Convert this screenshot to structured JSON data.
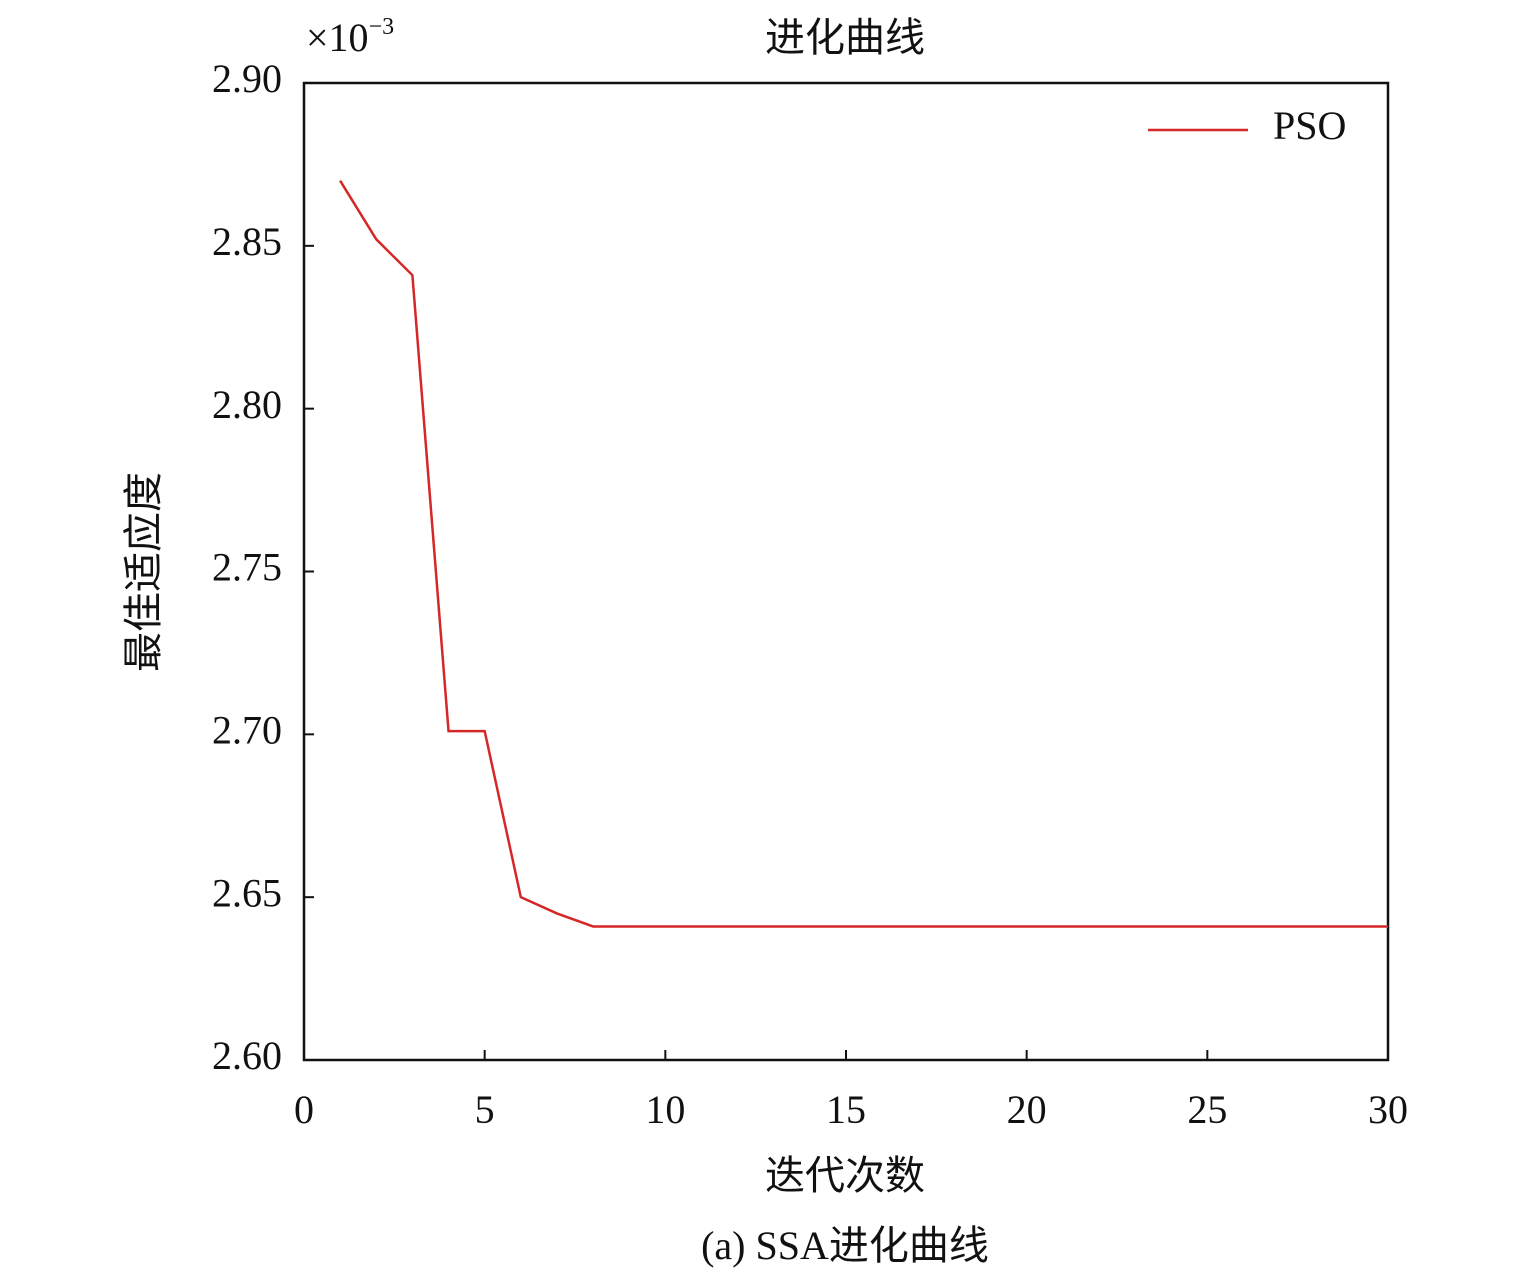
{
  "chart_data": {
    "type": "line",
    "title": "进化曲线",
    "x_label": "迭代次数",
    "y_label": "最佳适应度",
    "y_multiplier": {
      "base": "×10",
      "exponent": "−3"
    },
    "caption": "(a) SSA进化曲线",
    "x": [
      1,
      2,
      3,
      4,
      5,
      6,
      7,
      8,
      9,
      10,
      11,
      12,
      13,
      14,
      15,
      16,
      17,
      18,
      19,
      20,
      21,
      22,
      23,
      24,
      25,
      26,
      27,
      28,
      29,
      30
    ],
    "series": [
      {
        "name": "PSO",
        "color": "#d62728",
        "values": [
          2.87,
          2.852,
          2.841,
          2.701,
          2.701,
          2.65,
          2.645,
          2.641,
          2.641,
          2.641,
          2.641,
          2.641,
          2.641,
          2.641,
          2.641,
          2.641,
          2.641,
          2.641,
          2.641,
          2.641,
          2.641,
          2.641,
          2.641,
          2.641,
          2.641,
          2.641,
          2.641,
          2.641,
          2.641,
          2.641
        ]
      }
    ],
    "xlim": [
      0,
      30
    ],
    "xticks": [
      0,
      5,
      10,
      15,
      20,
      25,
      30
    ],
    "ylim": [
      2.6,
      2.9
    ],
    "yticks": [
      {
        "value": 2.6,
        "label": "2.60"
      },
      2.65,
      {
        "value": 2.7,
        "label": "2.70"
      },
      2.75,
      {
        "value": 2.8,
        "label": "2.80"
      },
      2.85,
      {
        "value": 2.9,
        "label": "2.90"
      }
    ],
    "grid": false,
    "legend": "upper right"
  }
}
